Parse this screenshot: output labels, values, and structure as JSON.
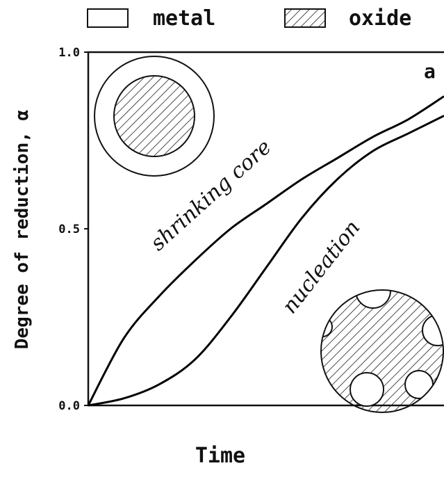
{
  "chart_data": {
    "type": "line",
    "xlabel": "Time",
    "ylabel": "Degree of reduction, α",
    "panel_label": "a",
    "legend_items": [
      "metal",
      "oxide"
    ],
    "x": [
      0,
      0.1,
      0.2,
      0.3,
      0.4,
      0.5,
      0.6,
      0.7,
      0.8,
      0.9,
      1.0
    ],
    "series": [
      {
        "name": "shrinking core",
        "color": "#000000",
        "values": [
          0,
          0.19,
          0.31,
          0.41,
          0.5,
          0.57,
          0.64,
          0.7,
          0.76,
          0.81,
          0.875
        ]
      },
      {
        "name": "nucleation",
        "color": "#000000",
        "values": [
          0,
          0.02,
          0.06,
          0.13,
          0.25,
          0.39,
          0.53,
          0.64,
          0.72,
          0.77,
          0.82
        ]
      }
    ],
    "xlim": [
      0,
      1.0
    ],
    "ylim": [
      0,
      1.0
    ],
    "yticks": [
      {
        "value": 0,
        "label": "0.0"
      },
      0.5,
      {
        "value": 1,
        "label": "1.0"
      }
    ]
  }
}
